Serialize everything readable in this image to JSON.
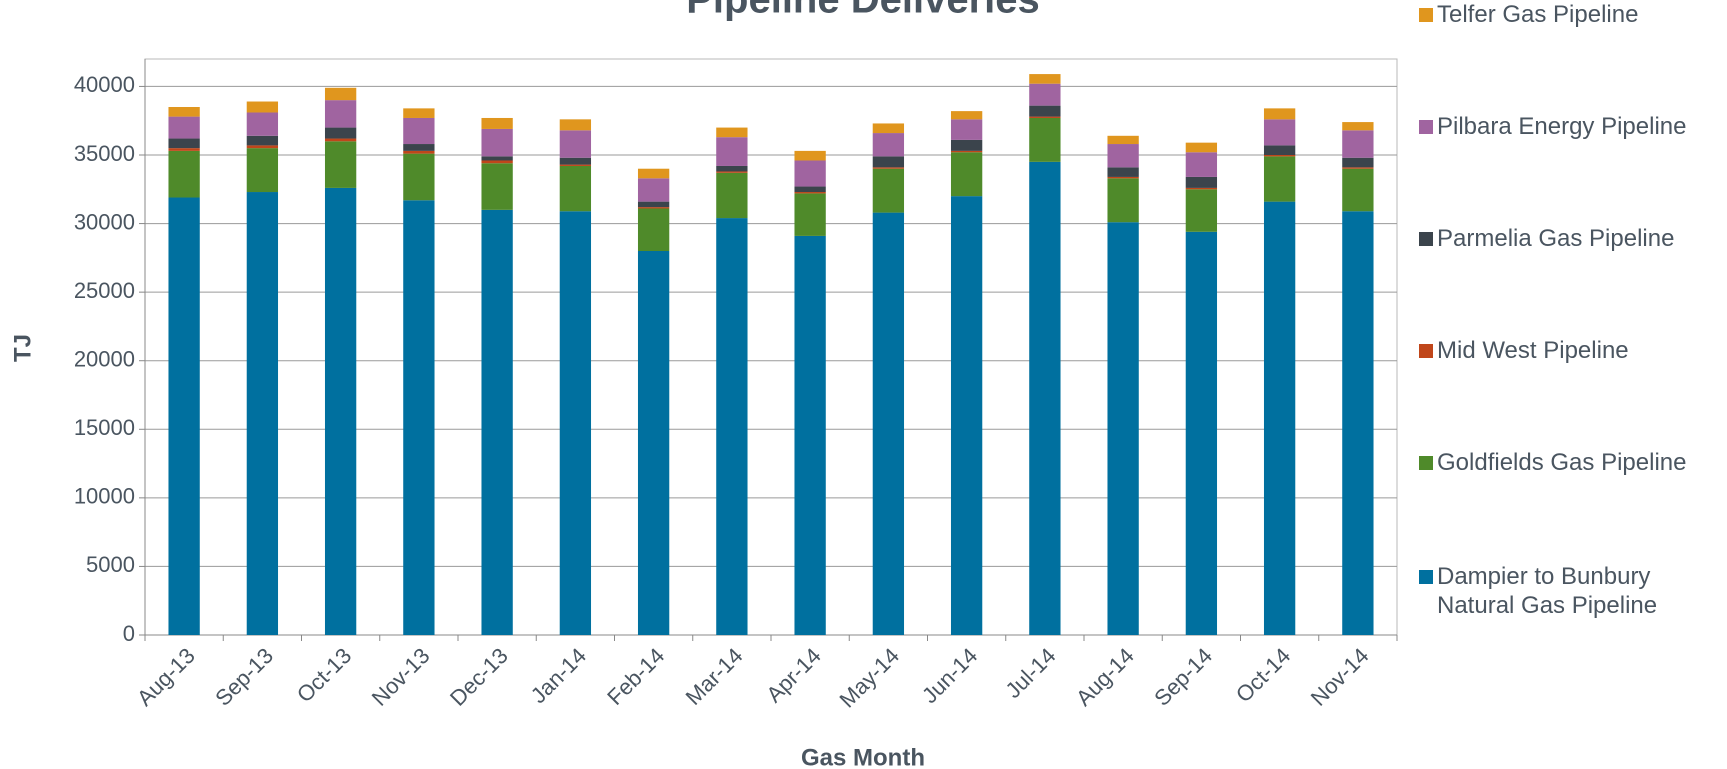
{
  "chart_data": {
    "type": "stacked_bar",
    "title": "Pipeline Deliveries",
    "x_label": "Gas Month",
    "y_label": "TJ",
    "categories": [
      "Aug-13",
      "Sep-13",
      "Oct-13",
      "Nov-13",
      "Dec-13",
      "Jan-14",
      "Feb-14",
      "Mar-14",
      "Apr-14",
      "May-14",
      "Jun-14",
      "Jul-14",
      "Aug-14",
      "Sep-14",
      "Oct-14",
      "Nov-14"
    ],
    "series": [
      {
        "name": "Dampier to Bunbury Natural Gas Pipeline",
        "color": "#00709f",
        "values": [
          31900,
          32300,
          32600,
          31700,
          31000,
          30900,
          28000,
          30400,
          29100,
          30800,
          32000,
          34500,
          30100,
          29400,
          31600,
          30900
        ]
      },
      {
        "name": "Goldfields Gas Pipeline",
        "color": "#4f8a2a",
        "values": [
          3400,
          3200,
          3400,
          3400,
          3400,
          3300,
          3100,
          3300,
          3100,
          3200,
          3200,
          3200,
          3200,
          3100,
          3300,
          3100
        ]
      },
      {
        "name": "Mid West Pipeline",
        "color": "#c0461a",
        "values": [
          200,
          200,
          200,
          200,
          200,
          100,
          100,
          100,
          100,
          100,
          100,
          100,
          100,
          100,
          100,
          100
        ]
      },
      {
        "name": "Parmelia Gas Pipeline",
        "color": "#3b444c",
        "values": [
          700,
          700,
          800,
          500,
          300,
          500,
          400,
          400,
          400,
          800,
          800,
          800,
          700,
          800,
          700,
          700
        ]
      },
      {
        "name": "Pilbara Energy Pipeline",
        "color": "#a064a0",
        "values": [
          1600,
          1700,
          2000,
          1900,
          2000,
          2000,
          1700,
          2100,
          1900,
          1700,
          1500,
          1600,
          1700,
          1800,
          1900,
          2000
        ]
      },
      {
        "name": "Telfer Gas Pipeline",
        "color": "#e0961e",
        "values": [
          700,
          800,
          900,
          700,
          800,
          800,
          700,
          700,
          700,
          700,
          600,
          700,
          600,
          700,
          800,
          600
        ]
      }
    ],
    "ylim": [
      0,
      42000
    ],
    "yticks": [
      0,
      5000,
      10000,
      15000,
      20000,
      25000,
      30000,
      35000,
      40000
    ],
    "grid": true,
    "legend": "right"
  }
}
